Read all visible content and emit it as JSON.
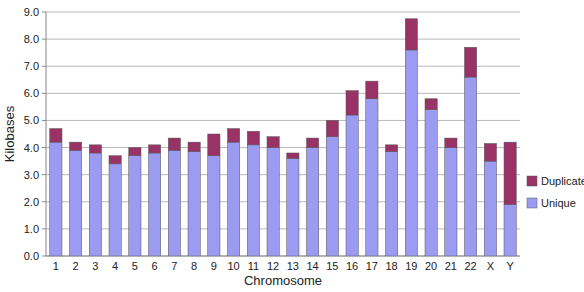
{
  "chart_data": {
    "type": "bar",
    "stacked": true,
    "grid": true,
    "legend": "right",
    "x_label": "Chromosome",
    "y_label": "Kilobases",
    "categories": [
      "1",
      "2",
      "3",
      "4",
      "5",
      "6",
      "7",
      "8",
      "9",
      "10",
      "11",
      "12",
      "13",
      "14",
      "15",
      "16",
      "17",
      "18",
      "19",
      "20",
      "21",
      "22",
      "X",
      "Y"
    ],
    "series": [
      {
        "name": "Unique",
        "color": "#9b9bf2",
        "values": [
          4.2,
          3.9,
          3.8,
          3.4,
          3.7,
          3.8,
          3.9,
          3.85,
          3.7,
          4.2,
          4.1,
          4.0,
          3.6,
          4.0,
          4.4,
          5.2,
          5.8,
          3.85,
          7.6,
          5.4,
          4.0,
          6.6,
          3.5,
          1.9
        ]
      },
      {
        "name": "Duplicate",
        "color": "#993366",
        "values": [
          0.5,
          0.3,
          0.3,
          0.3,
          0.3,
          0.3,
          0.45,
          0.35,
          0.8,
          0.5,
          0.5,
          0.4,
          0.2,
          0.35,
          0.6,
          0.9,
          0.65,
          0.25,
          1.15,
          0.4,
          0.35,
          1.1,
          0.65,
          2.3
        ]
      }
    ],
    "ylim": [
      0,
      9
    ],
    "yticks": [
      {
        "value": 0,
        "label": "0.0"
      },
      {
        "value": 1,
        "label": "1.0"
      },
      {
        "value": 2,
        "label": "2.0"
      },
      {
        "value": 3,
        "label": "3.0"
      },
      {
        "value": 4,
        "label": "4.0"
      },
      {
        "value": 5,
        "label": "5.0"
      },
      {
        "value": 6,
        "label": "6.0"
      },
      {
        "value": 7,
        "label": "7.0"
      },
      {
        "value": 8,
        "label": "8.0"
      },
      {
        "value": 9,
        "label": "9.0"
      }
    ]
  }
}
